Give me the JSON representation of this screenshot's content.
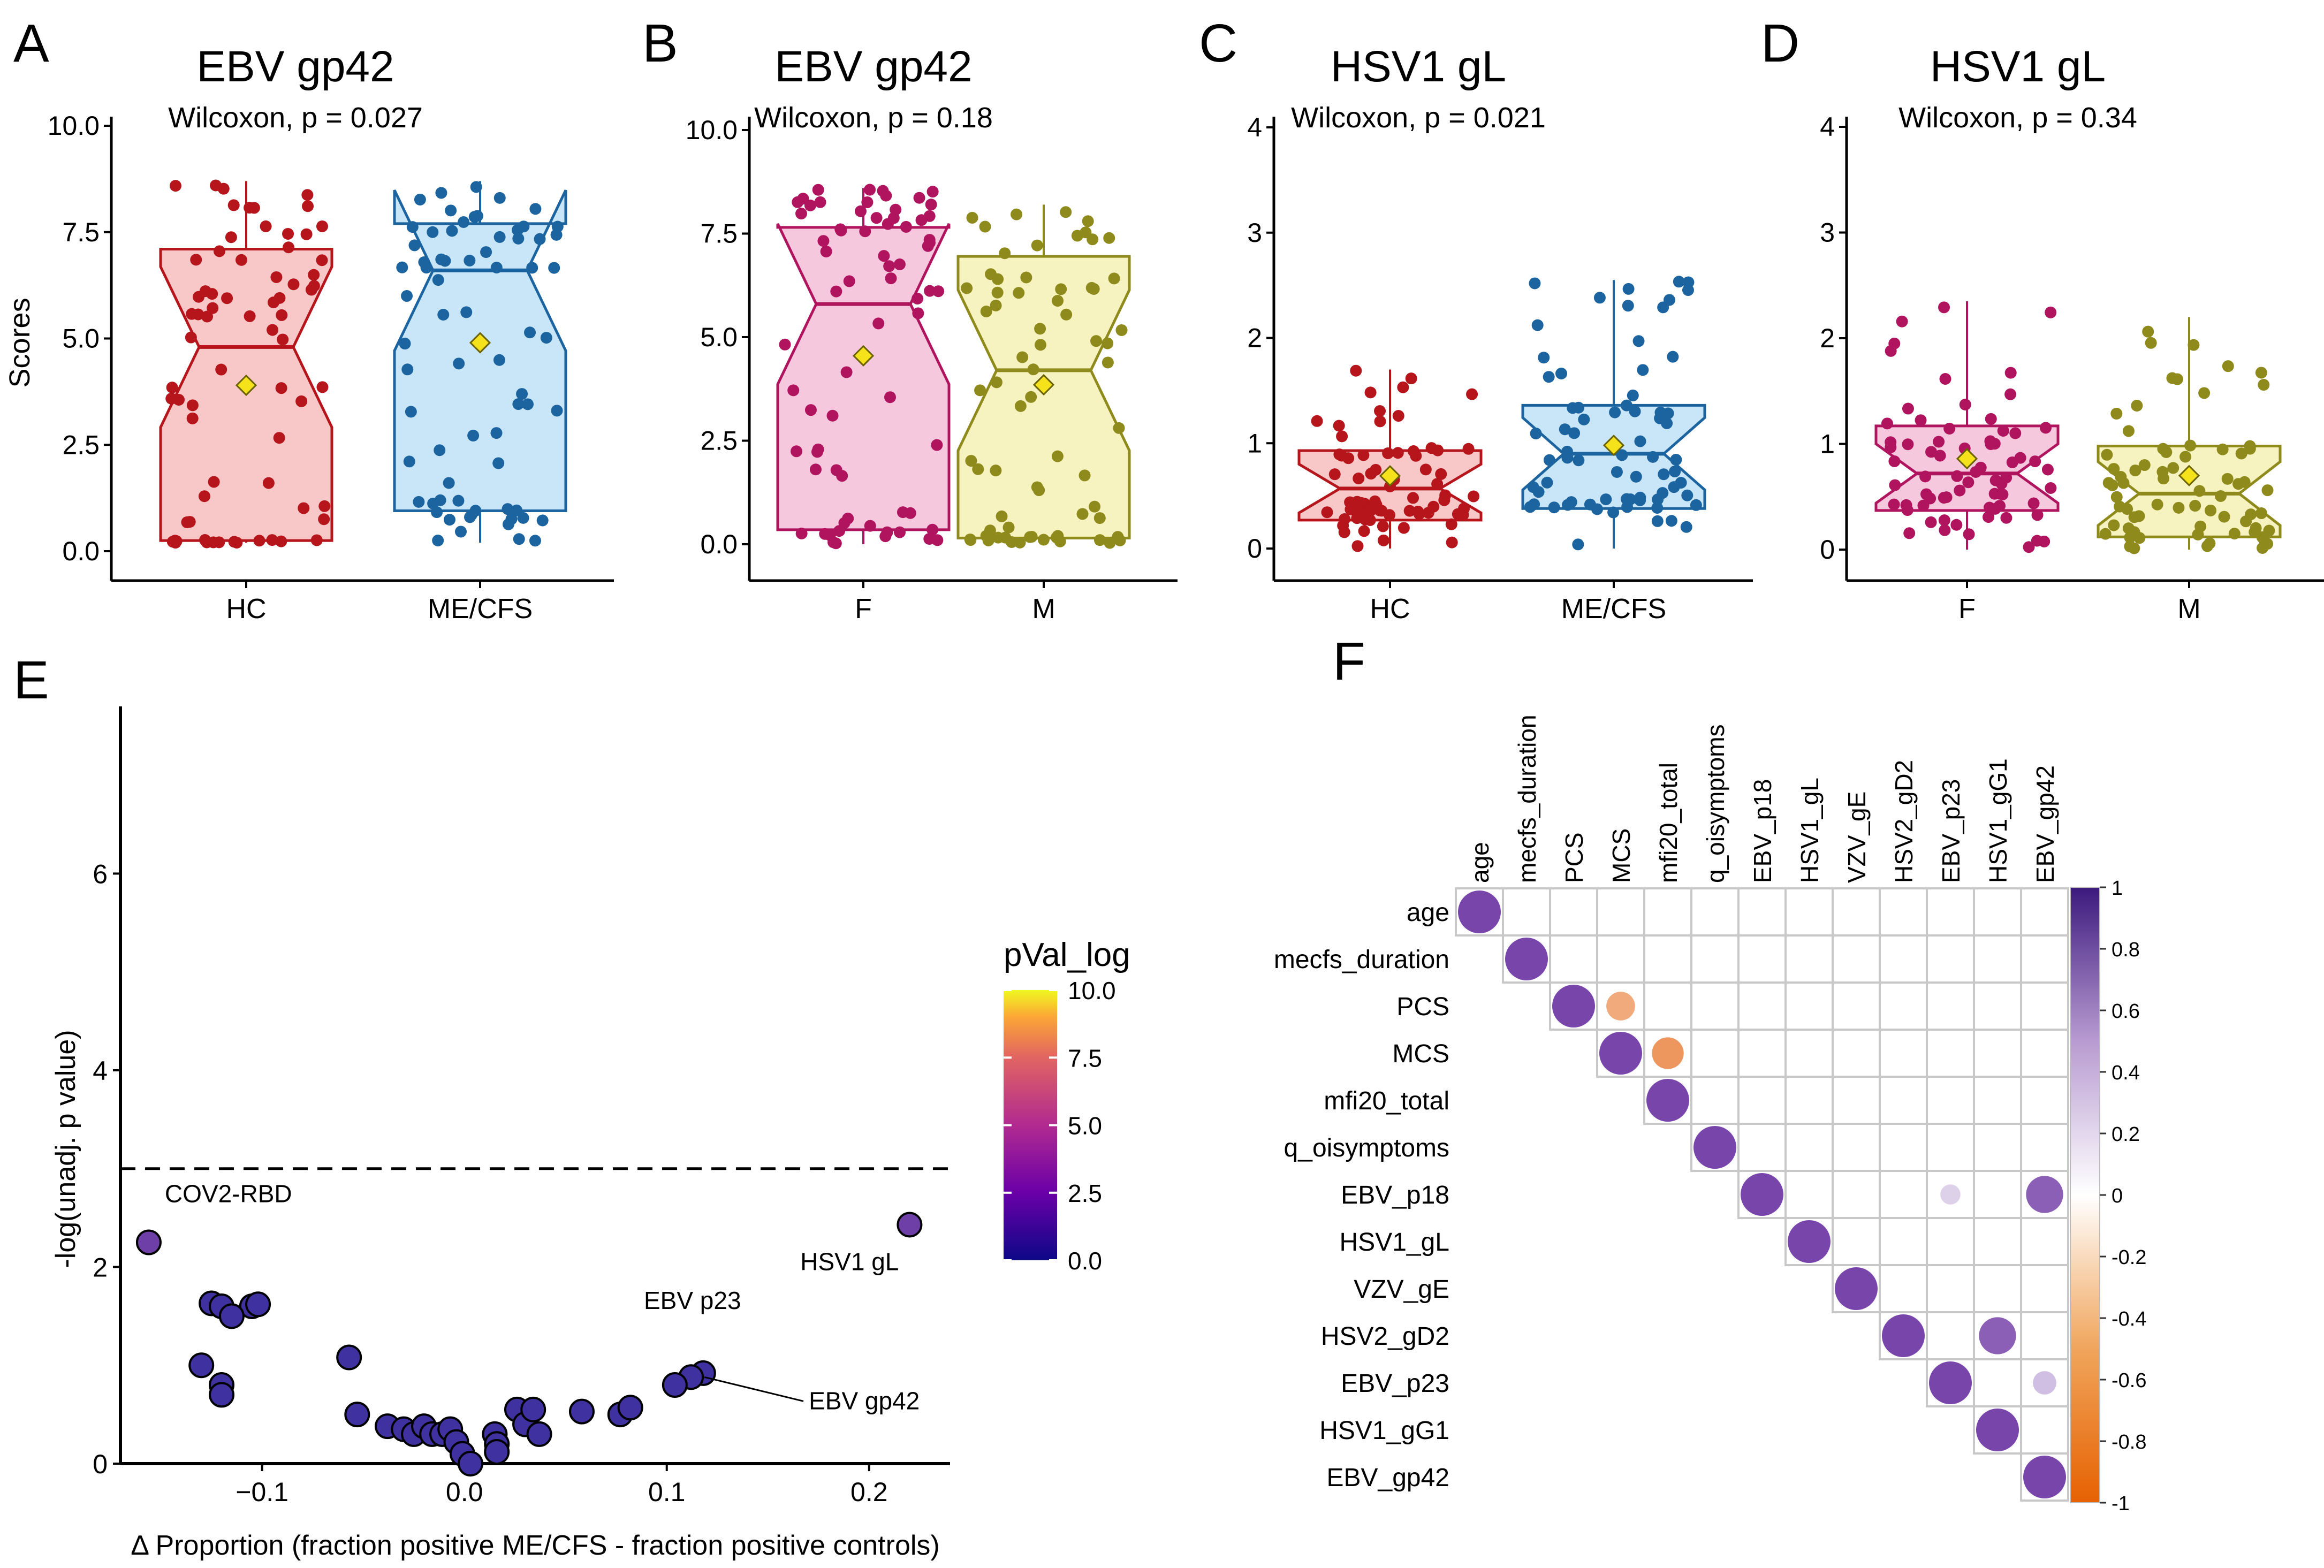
{
  "chart_data": [
    {
      "panel": "A",
      "type": "box",
      "title": "EBV gp42",
      "stat_label": "Wilcoxon, p = 0.027",
      "ylabel": "Scores",
      "ylim": [
        0,
        10
      ],
      "yticks": [
        "0.0",
        "2.5",
        "5.0",
        "7.5",
        "10.0"
      ],
      "ytick_values": [
        0,
        2.5,
        5,
        7.5,
        10
      ],
      "groups": [
        {
          "name": "HC",
          "color": "#b5151b",
          "fill": "#f8c8c8",
          "q1": 0.25,
          "median": 4.8,
          "q3": 7.1,
          "whisker_low": 0.2,
          "whisker_high": 8.7,
          "mean": 3.9
        },
        {
          "name": "ME/CFS",
          "color": "#1c64a0",
          "fill": "#c9e6f8",
          "q1": 0.95,
          "median": 6.6,
          "q3": 7.7,
          "whisker_low": 0.2,
          "whisker_high": 8.7,
          "mean": 4.9
        }
      ]
    },
    {
      "panel": "B",
      "type": "box",
      "title": "EBV gp42",
      "stat_label": "Wilcoxon, p = 0.18",
      "ylabel": "",
      "ylim": [
        0,
        10
      ],
      "yticks": [
        "0.0",
        "2.5",
        "5.0",
        "7.5",
        "10.0"
      ],
      "ytick_values": [
        0,
        2.5,
        5,
        7.5,
        10
      ],
      "groups": [
        {
          "name": "F",
          "color": "#b0145e",
          "fill": "#f6c8dd",
          "q1": 0.35,
          "median": 5.8,
          "q3": 7.65,
          "whisker_low": 0.0,
          "whisker_high": 8.6,
          "mean": 4.55
        },
        {
          "name": "M",
          "color": "#8e8a1c",
          "fill": "#f7f3c0",
          "q1": 0.15,
          "median": 4.2,
          "q3": 6.95,
          "whisker_low": 0.0,
          "whisker_high": 8.2,
          "mean": 3.85
        }
      ]
    },
    {
      "panel": "C",
      "type": "box",
      "title": "HSV1 gL",
      "stat_label": "Wilcoxon, p = 0.021",
      "ylabel": "",
      "ylim": [
        0,
        4
      ],
      "yticks": [
        "0",
        "1",
        "2",
        "3",
        "4"
      ],
      "ytick_values": [
        0,
        1,
        2,
        3,
        4
      ],
      "groups": [
        {
          "name": "HC",
          "color": "#b5151b",
          "fill": "#f8c8c8",
          "q1": 0.27,
          "median": 0.57,
          "q3": 0.93,
          "whisker_low": 0.0,
          "whisker_high": 1.7,
          "mean": 0.69
        },
        {
          "name": "ME/CFS",
          "color": "#1c64a0",
          "fill": "#c9e6f8",
          "q1": 0.38,
          "median": 0.9,
          "q3": 1.36,
          "whisker_low": 0.0,
          "whisker_high": 2.55,
          "mean": 0.98
        }
      ]
    },
    {
      "panel": "D",
      "type": "box",
      "title": "HSV1 gL",
      "stat_label": "Wilcoxon, p = 0.34",
      "ylabel": "",
      "ylim": [
        0,
        4
      ],
      "yticks": [
        "0",
        "1",
        "2",
        "3",
        "4"
      ],
      "ytick_values": [
        0,
        1,
        2,
        3,
        4
      ],
      "groups": [
        {
          "name": "F",
          "color": "#b0145e",
          "fill": "#f6c8dd",
          "q1": 0.37,
          "median": 0.72,
          "q3": 1.17,
          "whisker_low": 0.0,
          "whisker_high": 2.35,
          "mean": 0.86
        },
        {
          "name": "M",
          "color": "#8e8a1c",
          "fill": "#f7f3c0",
          "q1": 0.12,
          "median": 0.53,
          "q3": 0.98,
          "whisker_low": 0.0,
          "whisker_high": 2.2,
          "mean": 0.7
        }
      ]
    },
    {
      "panel": "E",
      "type": "scatter",
      "xlabel": "Δ Proportion (fraction positive ME/CFS - fraction positive controls)",
      "ylabel": "-log(unadj. p value)",
      "xlim": [
        -0.17,
        0.24
      ],
      "ylim": [
        0,
        7.7
      ],
      "xticks": [
        "−0.1",
        "0.0",
        "0.1",
        "0.2"
      ],
      "xtick_values": [
        -0.1,
        0,
        0.1,
        0.2
      ],
      "yticks": [
        "0",
        "2",
        "4",
        "6"
      ],
      "ytick_values": [
        0,
        2,
        4,
        6
      ],
      "threshold": 3.0,
      "colorbar": {
        "title": "pVal_log",
        "ticks": [
          "0.0",
          "2.5",
          "5.0",
          "7.5",
          "10.0"
        ],
        "tick_values": [
          0,
          2.5,
          5,
          7.5,
          10
        ]
      },
      "points": [
        {
          "x": -0.156,
          "y": 2.25,
          "label": "COV2-RBD"
        },
        {
          "x": 0.22,
          "y": 2.43,
          "label": "HSV1 gL"
        },
        {
          "x": 0.118,
          "y": 0.92,
          "label": "EBV p23"
        },
        {
          "x": 0.112,
          "y": 0.88,
          "label": "EBV gp42"
        },
        {
          "x": -0.125,
          "y": 1.63
        },
        {
          "x": -0.12,
          "y": 1.6
        },
        {
          "x": -0.105,
          "y": 1.6
        },
        {
          "x": -0.102,
          "y": 1.62
        },
        {
          "x": -0.115,
          "y": 1.5
        },
        {
          "x": -0.13,
          "y": 1.0
        },
        {
          "x": -0.12,
          "y": 0.8
        },
        {
          "x": -0.12,
          "y": 0.7
        },
        {
          "x": -0.057,
          "y": 1.08
        },
        {
          "x": -0.053,
          "y": 0.5
        },
        {
          "x": -0.038,
          "y": 0.38
        },
        {
          "x": -0.03,
          "y": 0.35
        },
        {
          "x": -0.025,
          "y": 0.3
        },
        {
          "x": -0.02,
          "y": 0.38
        },
        {
          "x": -0.016,
          "y": 0.3
        },
        {
          "x": -0.011,
          "y": 0.3
        },
        {
          "x": -0.007,
          "y": 0.35
        },
        {
          "x": -0.004,
          "y": 0.22
        },
        {
          "x": -0.001,
          "y": 0.1
        },
        {
          "x": 0.003,
          "y": 0.0
        },
        {
          "x": 0.015,
          "y": 0.3
        },
        {
          "x": 0.016,
          "y": 0.2
        },
        {
          "x": 0.016,
          "y": 0.12
        },
        {
          "x": 0.026,
          "y": 0.55
        },
        {
          "x": 0.03,
          "y": 0.4
        },
        {
          "x": 0.034,
          "y": 0.55
        },
        {
          "x": 0.037,
          "y": 0.3
        },
        {
          "x": 0.058,
          "y": 0.53
        },
        {
          "x": 0.077,
          "y": 0.5
        },
        {
          "x": 0.082,
          "y": 0.57
        },
        {
          "x": 0.104,
          "y": 0.8
        }
      ]
    },
    {
      "panel": "F",
      "type": "heatmap",
      "variables": [
        "age",
        "mecfs_duration",
        "PCS",
        "MCS",
        "mfi20_total",
        "q_oisymptoms",
        "EBV_p18",
        "HSV1_gL",
        "VZV_gE",
        "HSV2_gD2",
        "EBV_p23",
        "HSV1_gG1",
        "EBV_gp42"
      ],
      "colorbar_ticks": [
        "1",
        "0.8",
        "0.6",
        "0.4",
        "0.2",
        "0",
        "-0.2",
        "-0.4",
        "-0.6",
        "-0.8",
        "-1"
      ],
      "colorbar_tick_values": [
        1,
        0.8,
        0.6,
        0.4,
        0.2,
        0,
        -0.2,
        -0.4,
        -0.6,
        -0.8,
        -1
      ],
      "cells": [
        {
          "row": 0,
          "col": 0,
          "r": 1
        },
        {
          "row": 1,
          "col": 1,
          "r": 1
        },
        {
          "row": 2,
          "col": 2,
          "r": 1
        },
        {
          "row": 2,
          "col": 3,
          "r": -0.45
        },
        {
          "row": 3,
          "col": 3,
          "r": 1
        },
        {
          "row": 3,
          "col": 4,
          "r": -0.55
        },
        {
          "row": 4,
          "col": 4,
          "r": 1
        },
        {
          "row": 5,
          "col": 5,
          "r": 1
        },
        {
          "row": 6,
          "col": 6,
          "r": 1
        },
        {
          "row": 6,
          "col": 10,
          "r": 0.22
        },
        {
          "row": 6,
          "col": 12,
          "r": 0.75
        },
        {
          "row": 7,
          "col": 7,
          "r": 1
        },
        {
          "row": 8,
          "col": 8,
          "r": 1
        },
        {
          "row": 9,
          "col": 9,
          "r": 1
        },
        {
          "row": 9,
          "col": 11,
          "r": 0.75
        },
        {
          "row": 10,
          "col": 10,
          "r": 1
        },
        {
          "row": 10,
          "col": 12,
          "r": 0.3
        },
        {
          "row": 11,
          "col": 11,
          "r": 1
        },
        {
          "row": 12,
          "col": 12,
          "r": 1
        }
      ]
    }
  ]
}
